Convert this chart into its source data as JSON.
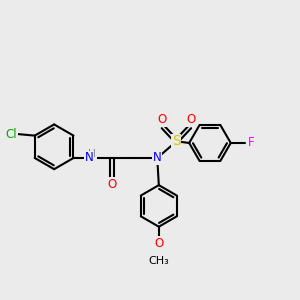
{
  "background_color": "#ebebeb",
  "atom_colors": {
    "C": "#000000",
    "N": "#0000ff",
    "O": "#ff0000",
    "S": "#cccc00",
    "Cl": "#00aa00",
    "F": "#ff00ff",
    "H": "#7a7a7a"
  },
  "bond_color": "#000000",
  "bond_width": 1.5,
  "dbo": 0.055,
  "font_size": 8.5,
  "fig_size": [
    3.0,
    3.0
  ]
}
